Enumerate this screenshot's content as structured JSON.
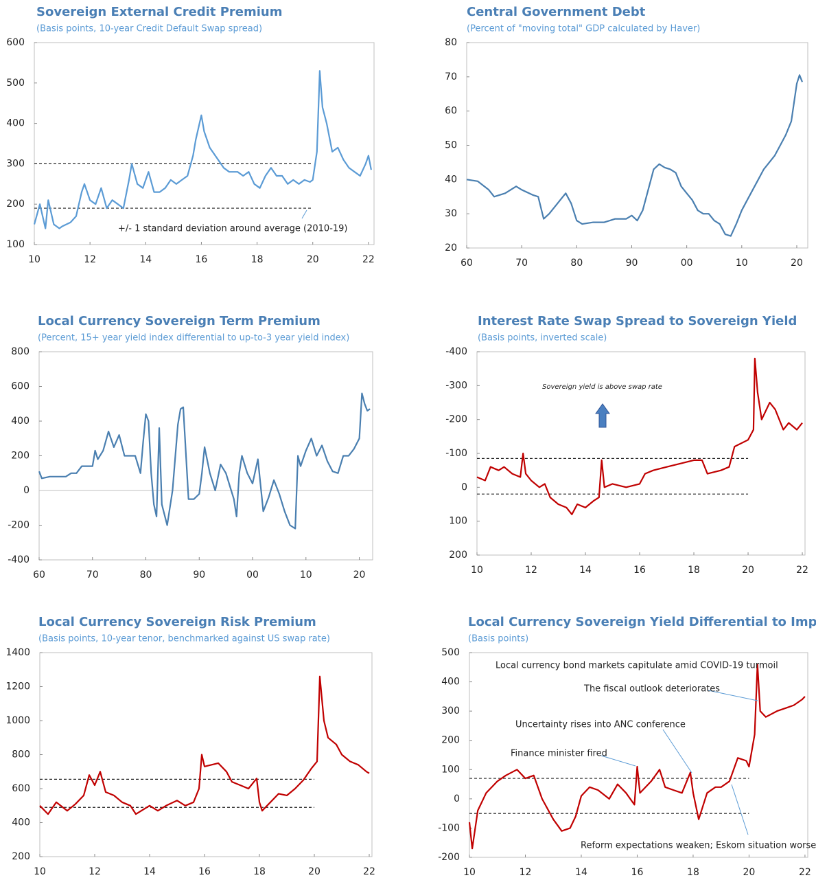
{
  "chart_data": [
    {
      "type": "line",
      "title": "Sovereign External Credit Premium",
      "subtitle": "(Basis points, 10-year Credit Default Swap spread)",
      "color": "#5b9bd5",
      "xlim": [
        2010,
        2022.2
      ],
      "xticks": [
        {
          "value": 2010,
          "label": "10"
        },
        {
          "value": 2012,
          "label": "12"
        },
        {
          "value": 2014,
          "label": "14"
        },
        {
          "value": 2016,
          "label": "16"
        },
        {
          "value": 2018,
          "label": "18"
        },
        {
          "value": 2020,
          "label": "20"
        },
        {
          "value": 2022,
          "label": "22"
        }
      ],
      "ylim": [
        100,
        600
      ],
      "yticks": [
        100,
        200,
        300,
        400,
        500,
        600
      ],
      "x": [
        2010,
        2010.2,
        2010.4,
        2010.5,
        2010.7,
        2010.9,
        2011,
        2011.3,
        2011.5,
        2011.7,
        2011.8,
        2012,
        2012.2,
        2012.4,
        2012.6,
        2012.8,
        2013,
        2013.2,
        2013.4,
        2013.5,
        2013.7,
        2013.9,
        2014.1,
        2014.3,
        2014.5,
        2014.7,
        2014.9,
        2015.1,
        2015.3,
        2015.5,
        2015.7,
        2015.8,
        2016,
        2016.1,
        2016.3,
        2016.6,
        2016.8,
        2017,
        2017.3,
        2017.5,
        2017.7,
        2017.9,
        2018.1,
        2018.3,
        2018.5,
        2018.7,
        2018.9,
        2019.1,
        2019.3,
        2019.5,
        2019.7,
        2019.9,
        2020,
        2020.15,
        2020.25,
        2020.35,
        2020.5,
        2020.7,
        2020.9,
        2021.1,
        2021.3,
        2021.5,
        2021.7,
        2021.9,
        2022,
        2022.1
      ],
      "values": [
        150,
        200,
        140,
        210,
        150,
        140,
        145,
        155,
        170,
        230,
        250,
        210,
        200,
        240,
        190,
        210,
        200,
        190,
        260,
        300,
        250,
        240,
        280,
        230,
        230,
        240,
        260,
        250,
        260,
        270,
        320,
        360,
        420,
        380,
        340,
        310,
        290,
        280,
        280,
        270,
        280,
        250,
        240,
        270,
        290,
        270,
        270,
        250,
        260,
        250,
        260,
        255,
        260,
        330,
        530,
        440,
        400,
        330,
        340,
        310,
        290,
        280,
        270,
        300,
        320,
        285
      ],
      "reference_lines": [
        {
          "y": 300,
          "x": [
            2010,
            2020
          ]
        },
        {
          "y": 190,
          "x": [
            2010,
            2020
          ]
        }
      ],
      "annotations": [
        "+/- 1 standard deviation around average (2010-19)"
      ]
    },
    {
      "type": "line",
      "title": "Central Government Debt",
      "subtitle": "(Percent of \"moving total\" GDP calculated by Haver)",
      "color": "#4a7fb0",
      "xlim": [
        1960,
        2022
      ],
      "xticks": [
        {
          "value": 1960,
          "label": "60"
        },
        {
          "value": 1970,
          "label": "70"
        },
        {
          "value": 1980,
          "label": "80"
        },
        {
          "value": 1990,
          "label": "90"
        },
        {
          "value": 2000,
          "label": "00"
        },
        {
          "value": 2010,
          "label": "10"
        },
        {
          "value": 2020,
          "label": "20"
        }
      ],
      "ylim": [
        20,
        80
      ],
      "yticks": [
        20,
        30,
        40,
        50,
        60,
        70,
        80
      ],
      "x": [
        1960,
        1962,
        1964,
        1965,
        1967,
        1969,
        1970,
        1972,
        1973,
        1974,
        1975,
        1977,
        1978,
        1979,
        1980,
        1981,
        1983,
        1985,
        1987,
        1989,
        1990,
        1991,
        1992,
        1993,
        1994,
        1995,
        1996,
        1997,
        1998,
        1999,
        2000,
        2001,
        2002,
        2003,
        2004,
        2005,
        2006,
        2007,
        2008,
        2009,
        2010,
        2011,
        2012,
        2013,
        2014,
        2015,
        2016,
        2017,
        2018,
        2019,
        2020,
        2020.5,
        2021
      ],
      "values": [
        40,
        39.5,
        37,
        35,
        36,
        38,
        37,
        35.5,
        35,
        28.5,
        30,
        34,
        36,
        33,
        28,
        27,
        27.5,
        27.5,
        28.5,
        28.5,
        29.5,
        28,
        31,
        37,
        43,
        44.5,
        43.5,
        43,
        42,
        38,
        36,
        34,
        31,
        30,
        30,
        28,
        27,
        24,
        23.5,
        27,
        31,
        34,
        37,
        40,
        43,
        45,
        47,
        50,
        53,
        57,
        68,
        70.5,
        68.5
      ]
    },
    {
      "type": "line",
      "title": "Local Currency Sovereign Term Premium",
      "subtitle": "(Percent, 15+ year yield index differential to up-to-3 year yield index)",
      "color": "#4a7fb0",
      "xlim": [
        1960,
        2022.5
      ],
      "xticks": [
        {
          "value": 1960,
          "label": "60"
        },
        {
          "value": 1970,
          "label": "70"
        },
        {
          "value": 1980,
          "label": "80"
        },
        {
          "value": 1990,
          "label": "90"
        },
        {
          "value": 2000,
          "label": "00"
        },
        {
          "value": 2010,
          "label": "10"
        },
        {
          "value": 2020,
          "label": "20"
        }
      ],
      "ylim": [
        -400,
        800
      ],
      "yticks": [
        -400,
        -200,
        0,
        200,
        400,
        600,
        800
      ],
      "zero_line": true,
      "x": [
        1960,
        1960.5,
        1962,
        1965,
        1966,
        1967,
        1968,
        1970,
        1970.5,
        1971,
        1972,
        1973,
        1974,
        1975,
        1976,
        1978,
        1979,
        1979.5,
        1980,
        1980.5,
        1981,
        1981.5,
        1982,
        1982.5,
        1983,
        1984,
        1985,
        1986,
        1986.5,
        1987,
        1988,
        1989,
        1990,
        1990.5,
        1991,
        1992,
        1993,
        1994,
        1995,
        1996,
        1996.5,
        1997,
        1997.5,
        1998,
        1999,
        2000,
        2001,
        2002,
        2003,
        2004,
        2005,
        2006,
        2007,
        2008,
        2008.5,
        2009,
        2010,
        2011,
        2012,
        2013,
        2014,
        2015,
        2016,
        2017,
        2018,
        2019,
        2020,
        2020.5,
        2021,
        2021.5,
        2022
      ],
      "values": [
        110,
        70,
        80,
        80,
        100,
        100,
        140,
        140,
        230,
        180,
        230,
        340,
        250,
        320,
        200,
        200,
        100,
        280,
        440,
        400,
        100,
        -80,
        -150,
        360,
        -80,
        -200,
        0,
        380,
        470,
        480,
        -50,
        -50,
        -20,
        100,
        250,
        100,
        0,
        150,
        100,
        0,
        -50,
        -150,
        100,
        200,
        100,
        40,
        180,
        -120,
        -40,
        60,
        -20,
        -120,
        -200,
        -220,
        200,
        140,
        230,
        300,
        200,
        260,
        170,
        110,
        100,
        200,
        200,
        240,
        300,
        560,
        500,
        460,
        470
      ]
    },
    {
      "type": "line",
      "title": "Interest Rate Swap Spread to Sovereign Yield",
      "subtitle": "(Basis points, inverted scale)",
      "color": "#c00000",
      "xlim": [
        2010,
        2022.1
      ],
      "xticks": [
        {
          "value": 2010,
          "label": "10"
        },
        {
          "value": 2012,
          "label": "12"
        },
        {
          "value": 2014,
          "label": "14"
        },
        {
          "value": 2016,
          "label": "16"
        },
        {
          "value": 2018,
          "label": "18"
        },
        {
          "value": 2020,
          "label": "20"
        },
        {
          "value": 2022,
          "label": "22"
        }
      ],
      "ylim": [
        200,
        -400
      ],
      "yticks": [
        -400,
        -300,
        -200,
        -100,
        0,
        100,
        200
      ],
      "x": [
        2010,
        2010.3,
        2010.5,
        2010.8,
        2011,
        2011.3,
        2011.6,
        2011.7,
        2011.8,
        2012,
        2012.3,
        2012.5,
        2012.7,
        2013,
        2013.3,
        2013.5,
        2013.7,
        2014,
        2014.3,
        2014.5,
        2014.6,
        2014.7,
        2015,
        2015.5,
        2016,
        2016.2,
        2016.5,
        2017,
        2017.5,
        2018,
        2018.3,
        2018.5,
        2019,
        2019.3,
        2019.5,
        2020,
        2020.2,
        2020.25,
        2020.35,
        2020.5,
        2020.8,
        2021,
        2021.3,
        2021.5,
        2021.8,
        2022
      ],
      "values": [
        -30,
        -20,
        -60,
        -50,
        -60,
        -40,
        -30,
        -100,
        -40,
        -20,
        0,
        -10,
        30,
        50,
        60,
        80,
        50,
        60,
        40,
        30,
        -80,
        0,
        -10,
        0,
        -10,
        -40,
        -50,
        -60,
        -70,
        -80,
        -80,
        -40,
        -50,
        -60,
        -120,
        -140,
        -170,
        -380,
        -280,
        -200,
        -250,
        -230,
        -170,
        -190,
        -170,
        -190
      ],
      "reference_lines": [
        {
          "y": -85,
          "x": [
            2010,
            2020
          ]
        },
        {
          "y": 20,
          "x": [
            2010,
            2020
          ]
        }
      ],
      "annotations": [
        "Sovereign yield is above swap rate"
      ]
    },
    {
      "type": "line",
      "title": "Local Currency Sovereign Risk Premium",
      "subtitle": "(Basis points, 10-year tenor, benchmarked against US swap rate)",
      "color": "#c00000",
      "xlim": [
        2010,
        2022.1
      ],
      "xticks": [
        {
          "value": 2010,
          "label": "10"
        },
        {
          "value": 2012,
          "label": "12"
        },
        {
          "value": 2014,
          "label": "14"
        },
        {
          "value": 2016,
          "label": "16"
        },
        {
          "value": 2018,
          "label": "18"
        },
        {
          "value": 2020,
          "label": "20"
        },
        {
          "value": 2022,
          "label": "22"
        }
      ],
      "ylim": [
        200,
        1400
      ],
      "yticks": [
        200,
        400,
        600,
        800,
        1000,
        1200,
        1400
      ],
      "x": [
        2010,
        2010.3,
        2010.6,
        2011,
        2011.3,
        2011.6,
        2011.8,
        2012,
        2012.2,
        2012.4,
        2012.7,
        2013,
        2013.3,
        2013.5,
        2013.8,
        2014,
        2014.3,
        2014.6,
        2015,
        2015.3,
        2015.6,
        2015.8,
        2015.9,
        2016,
        2016.5,
        2016.8,
        2017,
        2017.3,
        2017.6,
        2017.9,
        2018,
        2018.1,
        2018.4,
        2018.7,
        2019,
        2019.3,
        2019.6,
        2019.9,
        2020.1,
        2020.2,
        2020.35,
        2020.5,
        2020.8,
        2021,
        2021.3,
        2021.6,
        2021.9,
        2022
      ],
      "values": [
        500,
        450,
        520,
        470,
        510,
        560,
        680,
        620,
        700,
        580,
        560,
        520,
        500,
        450,
        480,
        500,
        470,
        500,
        530,
        500,
        520,
        600,
        800,
        730,
        750,
        700,
        640,
        620,
        600,
        660,
        520,
        470,
        520,
        570,
        560,
        600,
        650,
        720,
        760,
        1260,
        1000,
        900,
        860,
        800,
        760,
        740,
        700,
        690
      ],
      "reference_lines": [
        {
          "y": 655,
          "x": [
            2010,
            2020
          ]
        },
        {
          "y": 490,
          "x": [
            2010,
            2020
          ]
        }
      ]
    },
    {
      "type": "line",
      "title": "Local Currency Sovereign Yield Differential to Implied",
      "subtitle": "(Basis points)",
      "color": "#c00000",
      "xlim": [
        2010,
        2022.1
      ],
      "xticks": [
        {
          "value": 2010,
          "label": "10"
        },
        {
          "value": 2012,
          "label": "12"
        },
        {
          "value": 2014,
          "label": "14"
        },
        {
          "value": 2016,
          "label": "16"
        },
        {
          "value": 2018,
          "label": "18"
        },
        {
          "value": 2020,
          "label": "20"
        },
        {
          "value": 2022,
          "label": "22"
        }
      ],
      "ylim": [
        -200,
        500
      ],
      "yticks": [
        -200,
        -100,
        0,
        100,
        200,
        300,
        400,
        500
      ],
      "x": [
        2010,
        2010.1,
        2010.3,
        2010.6,
        2011,
        2011.3,
        2011.7,
        2012,
        2012.3,
        2012.6,
        2013,
        2013.3,
        2013.6,
        2013.8,
        2014,
        2014.3,
        2014.6,
        2015,
        2015.3,
        2015.6,
        2015.9,
        2016,
        2016.1,
        2016.5,
        2016.8,
        2017,
        2017.3,
        2017.6,
        2017.9,
        2018,
        2018.2,
        2018.5,
        2018.8,
        2019,
        2019.3,
        2019.6,
        2019.9,
        2020,
        2020.2,
        2020.3,
        2020.4,
        2020.6,
        2021,
        2021.3,
        2021.6,
        2021.9,
        2022
      ],
      "values": [
        -80,
        -170,
        -40,
        20,
        60,
        80,
        100,
        70,
        80,
        0,
        -70,
        -110,
        -100,
        -60,
        10,
        40,
        30,
        0,
        50,
        20,
        -20,
        110,
        20,
        60,
        100,
        40,
        30,
        20,
        90,
        20,
        -70,
        20,
        40,
        40,
        60,
        140,
        130,
        110,
        220,
        460,
        300,
        280,
        300,
        310,
        320,
        340,
        350
      ],
      "reference_lines": [
        {
          "y": 70,
          "x": [
            2010,
            2020
          ]
        },
        {
          "y": -50,
          "x": [
            2010,
            2020
          ]
        }
      ],
      "annotations": [
        "Local currency bond markets capitulate amid COVID-19 turmoil",
        "The fiscal outlook deteriorates",
        "Uncertainty rises into ANC conference",
        "Finance minister fired",
        "Reform expectations weaken; Eskom situation worsens"
      ]
    }
  ]
}
